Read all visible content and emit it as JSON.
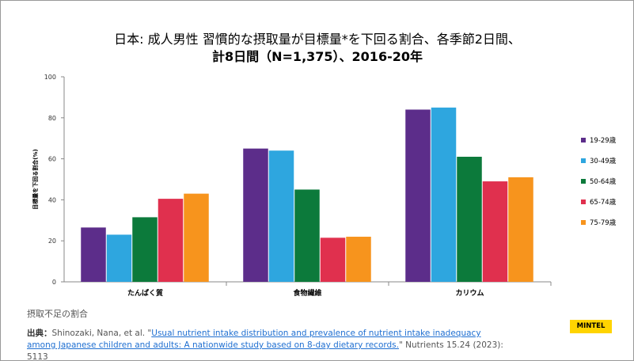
{
  "chart_data": {
    "type": "bar",
    "title_line1": "日本: 成人男性  習慣的な摂取量が目標量*を下回る割合、各季節2日間、",
    "title_line2": "計8日間（N=1,375）、2016-20年",
    "ylabel": "目標量を下回る割合(%)",
    "xlabel": "",
    "ylim": [
      0,
      100
    ],
    "yticks": [
      "0",
      "20",
      "40",
      "60",
      "80",
      "100"
    ],
    "categories": [
      "たんぱく質",
      "食物繊維",
      "カリウム"
    ],
    "series": [
      {
        "name": "19-29歳",
        "color": "#5c2d8a",
        "values": [
          26.5,
          65,
          84
        ]
      },
      {
        "name": "30-49歳",
        "color": "#2ea6df",
        "values": [
          23,
          64,
          85
        ]
      },
      {
        "name": "50-64歳",
        "color": "#0c7a3b",
        "values": [
          31.5,
          45,
          61
        ]
      },
      {
        "name": "65-74歳",
        "color": "#e0304e",
        "values": [
          40.5,
          21.5,
          49
        ]
      },
      {
        "name": "75-79歳",
        "color": "#f7941d",
        "values": [
          43,
          22,
          51
        ]
      }
    ],
    "legend": "right",
    "grid": false
  },
  "footer": {
    "note": "摂取不足の割合",
    "source_label": "出典：",
    "source_authors": "Shinozaki, Nana, et al. \"",
    "source_link": "Usual nutrient intake distribution and prevalence of nutrient intake inadequacy among Japanese children and adults: A nationwide study based on 8-day dietary records.",
    "source_tail": "\" Nutrients 15.24 (2023): 5113",
    "logo": "MINTEL"
  }
}
